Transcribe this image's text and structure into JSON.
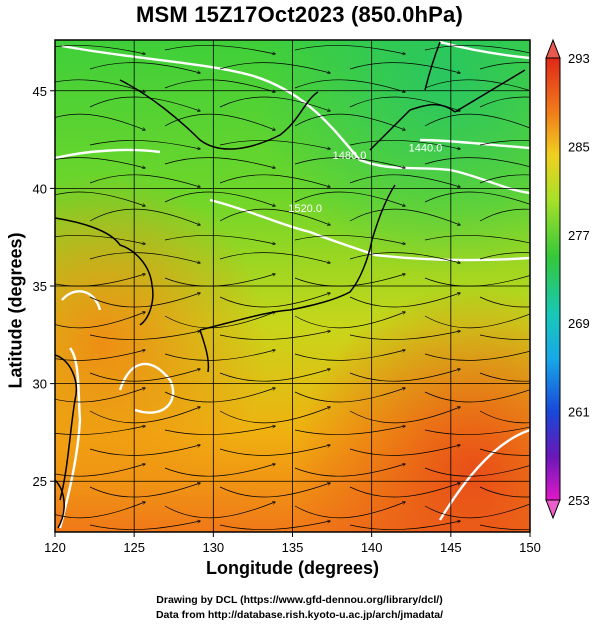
{
  "title": "MSM 15Z17Oct2023 (850.0hPa)",
  "x_axis": {
    "label": "Longitude (degrees)",
    "range": [
      120,
      150
    ],
    "ticks": [
      {
        "value": 120,
        "label": "120"
      },
      {
        "value": 125,
        "label": "125"
      },
      {
        "value": 130,
        "label": "130"
      },
      {
        "value": 135,
        "label": "135"
      },
      {
        "value": 140,
        "label": "140"
      },
      {
        "value": 145,
        "label": "145"
      },
      {
        "value": 150,
        "label": "150"
      }
    ]
  },
  "y_axis": {
    "label": "Latitude  (degrees)",
    "range": [
      22.4,
      47.6
    ],
    "ticks": [
      {
        "value": 25,
        "label": "25"
      },
      {
        "value": 30,
        "label": "30"
      },
      {
        "value": 35,
        "label": "35"
      },
      {
        "value": 40,
        "label": "40"
      },
      {
        "value": 45,
        "label": "45"
      }
    ]
  },
  "colorbar": {
    "range": [
      253,
      293
    ],
    "labels": [
      {
        "value": 293,
        "label": "293"
      },
      {
        "value": 285,
        "label": "285"
      },
      {
        "value": 277,
        "label": "277"
      },
      {
        "value": 269,
        "label": "269"
      },
      {
        "value": 261,
        "label": "261"
      },
      {
        "value": 253,
        "label": "253"
      }
    ]
  },
  "contour_labels": [
    {
      "text": "1480.0",
      "lon": 138.6,
      "lat": 41.5
    },
    {
      "text": "1440.0",
      "lon": 143.4,
      "lat": 41.9
    },
    {
      "text": "1520.0",
      "lon": 135.8,
      "lat": 38.8
    }
  ],
  "credits": [
    "Drawing by DCL (https://www.gfd-dennou.org/library/dcl/)",
    "Data from http://database.rish.kyoto-u.ac.jp/arch/jmadata/"
  ]
}
